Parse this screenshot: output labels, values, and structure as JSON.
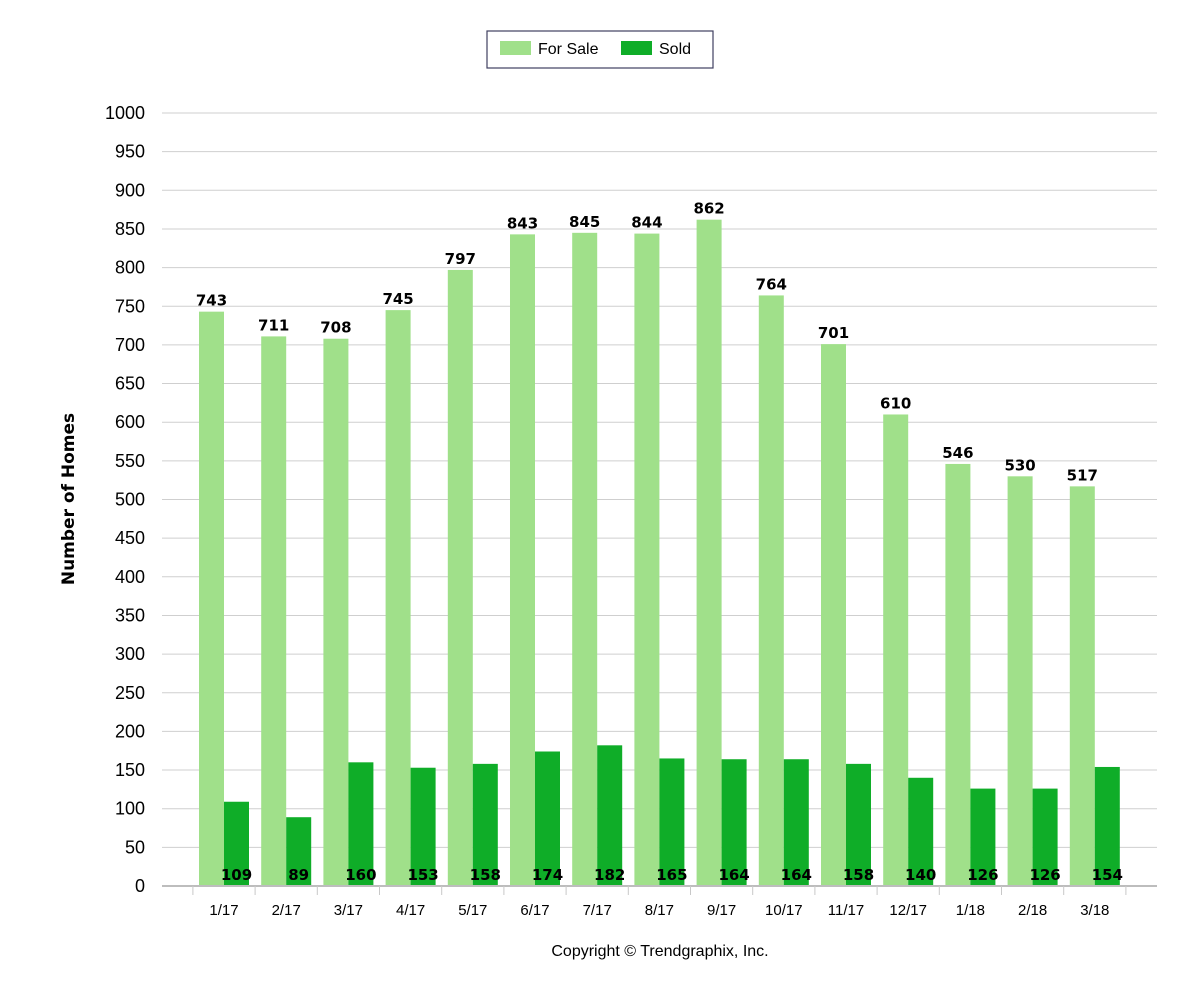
{
  "chart_data": {
    "type": "bar",
    "categories": [
      "1/17",
      "2/17",
      "3/17",
      "4/17",
      "5/17",
      "6/17",
      "7/17",
      "8/17",
      "9/17",
      "10/17",
      "11/17",
      "12/17",
      "1/18",
      "2/18",
      "3/18"
    ],
    "series": [
      {
        "name": "For Sale",
        "color": "#a0e08a",
        "values": [
          743,
          711,
          708,
          745,
          797,
          843,
          845,
          844,
          862,
          764,
          701,
          610,
          546,
          530,
          517
        ]
      },
      {
        "name": "Sold",
        "color": "#0fad28",
        "values": [
          109,
          89,
          160,
          153,
          158,
          174,
          182,
          165,
          164,
          164,
          158,
          140,
          126,
          126,
          154
        ]
      }
    ],
    "title": "",
    "xlabel": "",
    "ylabel": "Number of Homes",
    "ylim": [
      0,
      1000
    ],
    "yticks": [
      0,
      50,
      100,
      150,
      200,
      250,
      300,
      350,
      400,
      450,
      500,
      550,
      600,
      650,
      700,
      750,
      800,
      850,
      900,
      950,
      1000
    ],
    "grid": true,
    "legend_position": "top-center",
    "data_labels": true
  },
  "footer": {
    "copyright": "Copyright © Trendgraphix, Inc."
  }
}
